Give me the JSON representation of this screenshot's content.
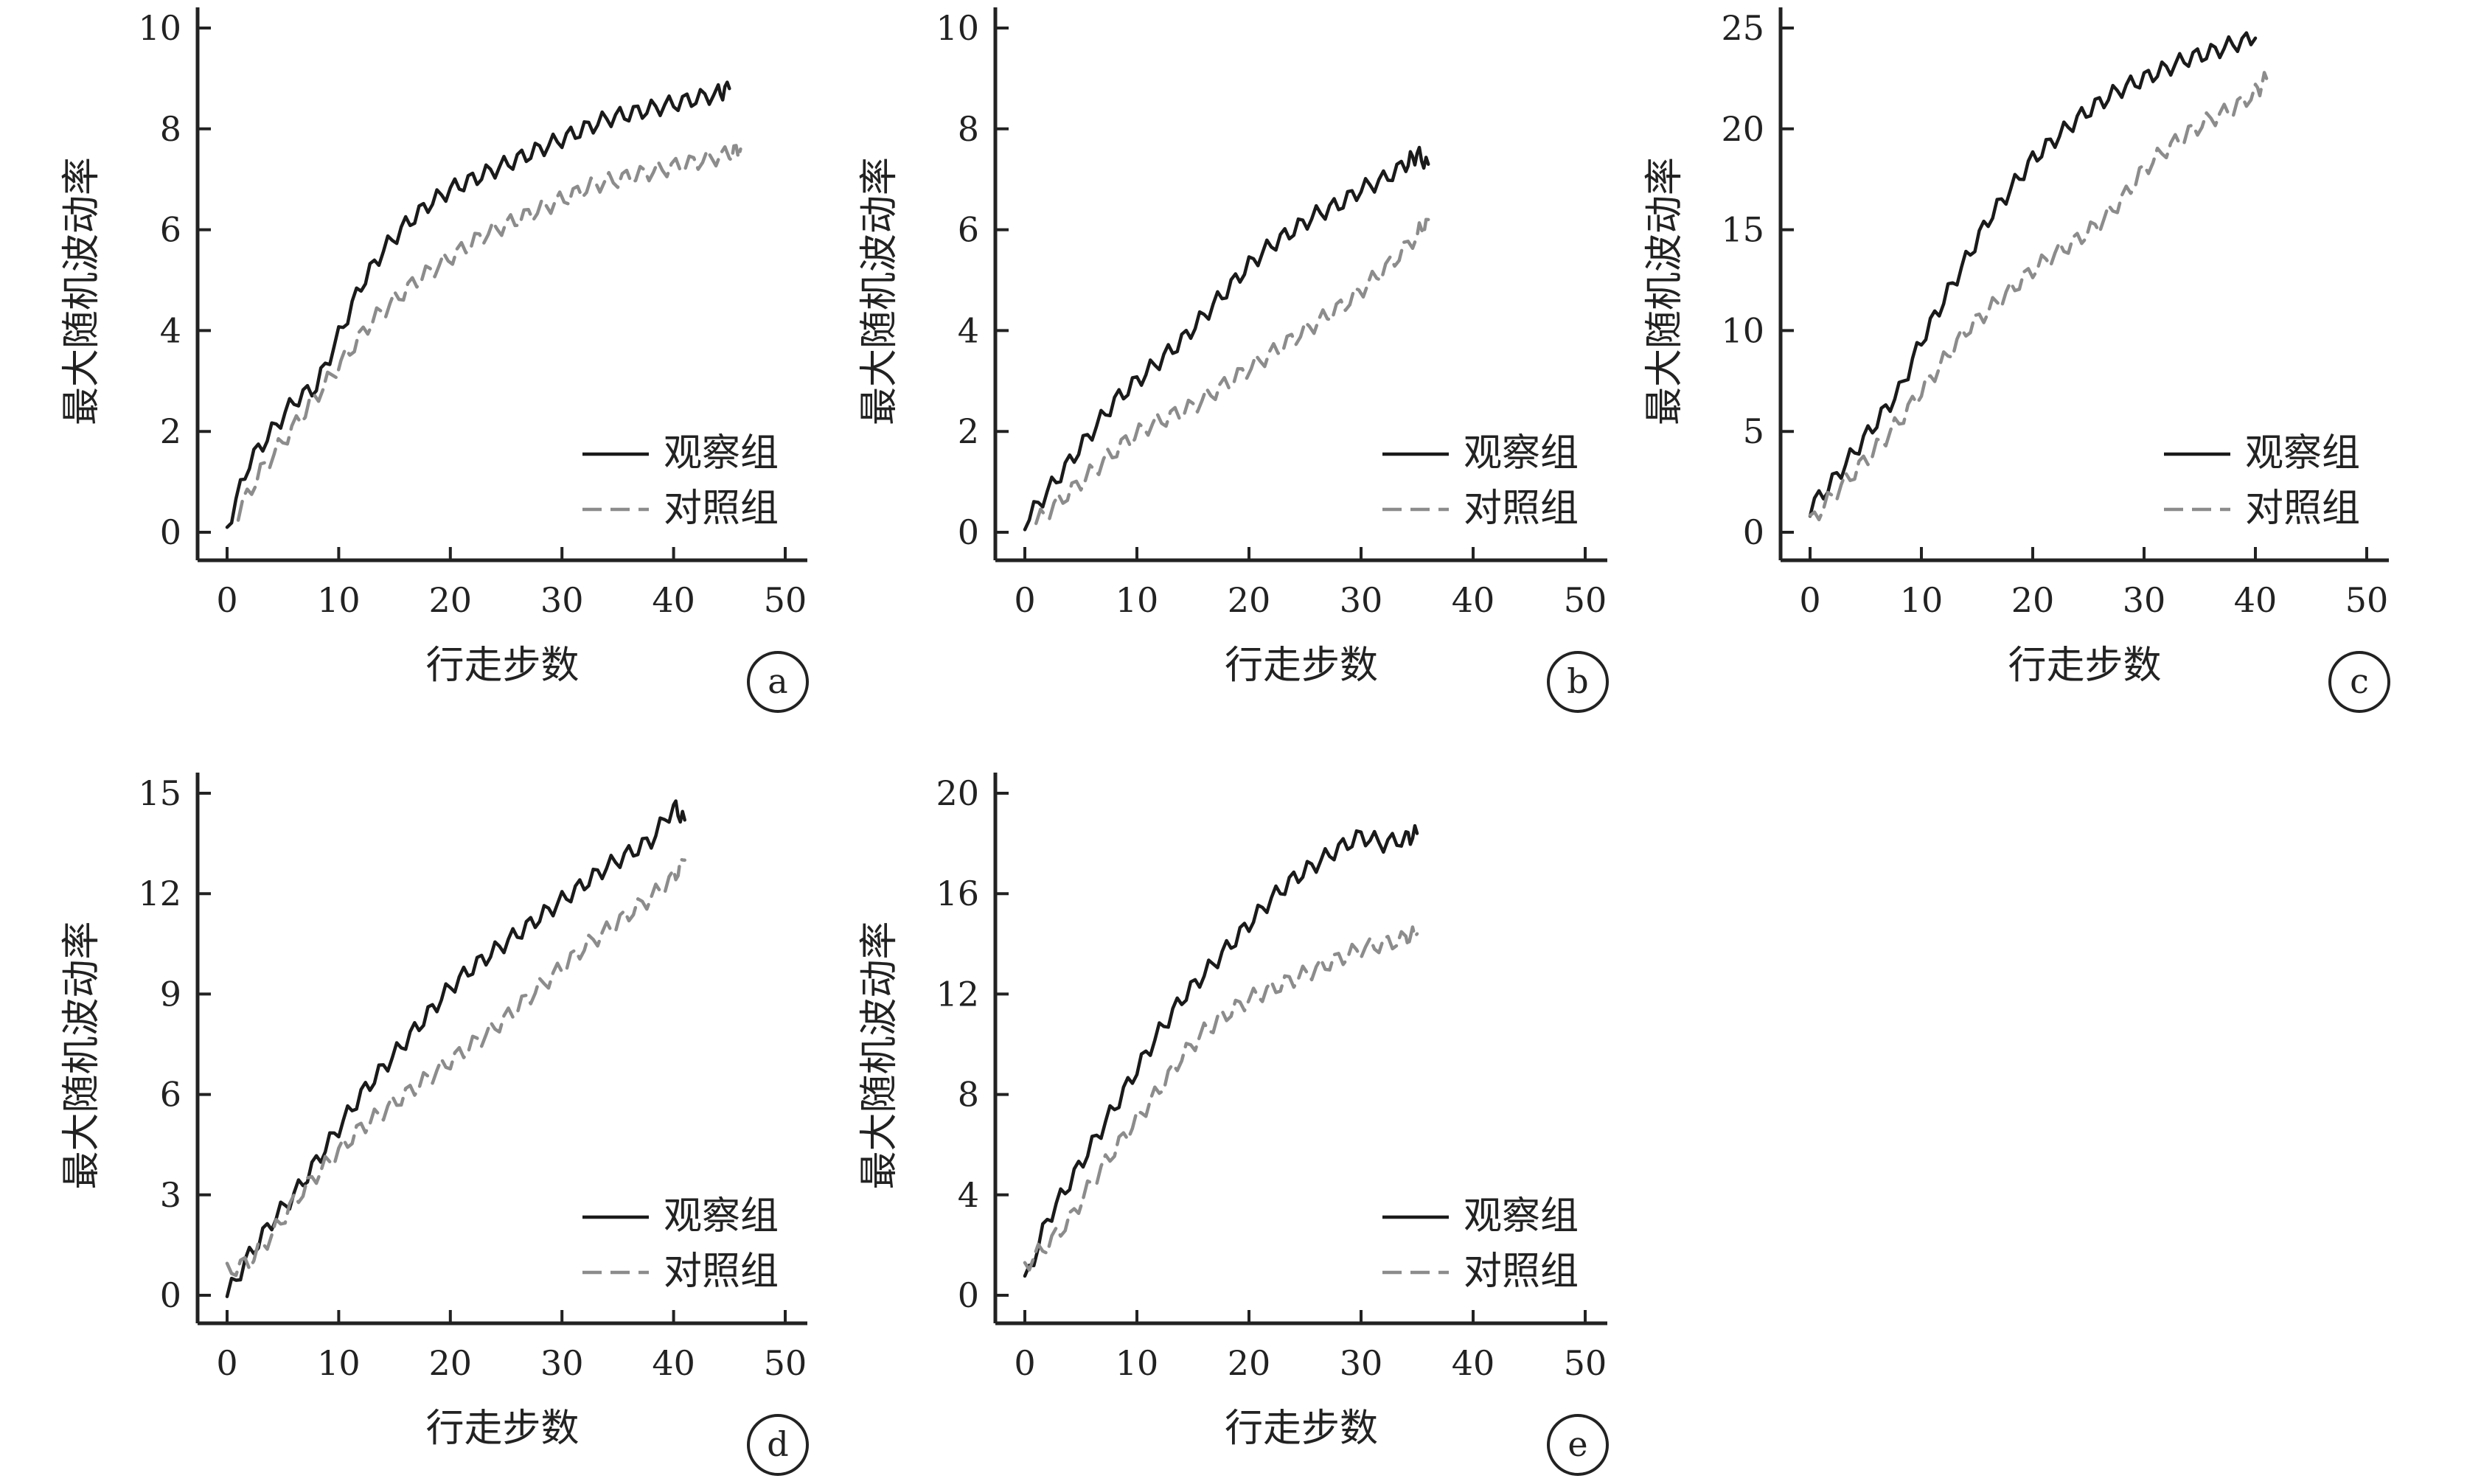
{
  "colors": {
    "observation": "#1a1a1a",
    "control": "#8c8c8c",
    "axis": "#222222",
    "background": "#ffffff"
  },
  "chart_data": [
    {
      "type": "line",
      "panel": "a",
      "xlabel": "行走步数",
      "ylabel": "最大随机波动率",
      "xlim": [
        0,
        50
      ],
      "xticks": [
        0,
        10,
        20,
        30,
        40,
        50
      ],
      "ylim": [
        0,
        10
      ],
      "yticks": [
        0,
        2,
        4,
        6,
        8,
        10
      ],
      "legend": "bottom-right",
      "grid": false,
      "series": [
        {
          "name": "观察组",
          "style": "solid",
          "x": [
            0,
            2,
            4,
            6,
            8,
            10,
            12,
            14,
            16,
            18,
            20,
            22,
            24,
            26,
            28,
            30,
            32,
            34,
            36,
            38,
            40,
            42,
            44,
            45
          ],
          "y": [
            0.1,
            1.4,
            2.0,
            2.6,
            2.9,
            3.9,
            4.9,
            5.6,
            6.1,
            6.5,
            6.8,
            7.0,
            7.2,
            7.4,
            7.6,
            7.8,
            8.0,
            8.2,
            8.3,
            8.4,
            8.5,
            8.6,
            8.7,
            8.8
          ]
        },
        {
          "name": "对照组",
          "style": "dashed",
          "x": [
            1,
            3,
            5,
            7,
            9,
            11,
            13,
            15,
            17,
            19,
            21,
            23,
            25,
            27,
            29,
            31,
            33,
            35,
            37,
            39,
            41,
            43,
            45,
            46
          ],
          "y": [
            0.4,
            1.2,
            1.8,
            2.4,
            3.0,
            3.6,
            4.2,
            4.6,
            5.0,
            5.3,
            5.6,
            5.9,
            6.1,
            6.3,
            6.5,
            6.7,
            6.9,
            7.0,
            7.1,
            7.2,
            7.3,
            7.4,
            7.5,
            7.6
          ]
        }
      ]
    },
    {
      "type": "line",
      "panel": "b",
      "xlabel": "行走步数",
      "ylabel": "最大随机波动率",
      "xlim": [
        0,
        50
      ],
      "xticks": [
        0,
        10,
        20,
        30,
        40,
        50
      ],
      "ylim": [
        0,
        10
      ],
      "yticks": [
        0,
        2,
        4,
        6,
        8,
        10
      ],
      "legend": "bottom-right",
      "grid": false,
      "series": [
        {
          "name": "观察组",
          "style": "solid",
          "x": [
            0,
            2,
            4,
            6,
            8,
            10,
            12,
            14,
            16,
            18,
            20,
            22,
            24,
            26,
            28,
            30,
            32,
            34,
            35,
            36
          ],
          "y": [
            0.2,
            0.8,
            1.4,
            2.0,
            2.6,
            3.0,
            3.4,
            3.8,
            4.3,
            4.8,
            5.3,
            5.7,
            6.0,
            6.3,
            6.5,
            6.8,
            7.0,
            7.3,
            7.5,
            7.3
          ]
        },
        {
          "name": "对照组",
          "style": "dashed",
          "x": [
            1,
            3,
            5,
            7,
            9,
            11,
            13,
            15,
            17,
            19,
            21,
            23,
            25,
            27,
            29,
            31,
            33,
            35,
            36
          ],
          "y": [
            0.2,
            0.6,
            1.0,
            1.4,
            1.8,
            2.1,
            2.3,
            2.5,
            2.8,
            3.1,
            3.4,
            3.7,
            4.0,
            4.3,
            4.6,
            5.0,
            5.4,
            5.9,
            6.2
          ]
        }
      ]
    },
    {
      "type": "line",
      "panel": "c",
      "xlabel": "行走步数",
      "ylabel": "最大随机波动率",
      "xlim": [
        0,
        50
      ],
      "xticks": [
        0,
        10,
        20,
        30,
        40,
        50
      ],
      "ylim": [
        0,
        25
      ],
      "yticks": [
        0,
        5,
        10,
        15,
        20,
        25
      ],
      "legend": "bottom-right",
      "grid": false,
      "series": [
        {
          "name": "观察组",
          "style": "solid",
          "x": [
            0,
            2,
            4,
            6,
            8,
            10,
            12,
            14,
            16,
            18,
            20,
            22,
            24,
            26,
            28,
            30,
            32,
            34,
            36,
            38,
            40
          ],
          "y": [
            1.2,
            2.5,
            4.0,
            5.5,
            7.0,
            9.5,
            11.5,
            13.5,
            15.5,
            17.0,
            18.5,
            19.5,
            20.5,
            21.3,
            22.0,
            22.5,
            23.0,
            23.5,
            23.8,
            24.2,
            24.5
          ]
        },
        {
          "name": "对照组",
          "style": "dashed",
          "x": [
            0,
            2,
            4,
            6,
            8,
            10,
            12,
            14,
            16,
            18,
            20,
            22,
            24,
            26,
            28,
            30,
            32,
            34,
            36,
            38,
            40,
            41
          ],
          "y": [
            0.5,
            1.8,
            3.0,
            4.2,
            5.5,
            7.0,
            8.5,
            10.0,
            11.0,
            12.0,
            13.0,
            13.8,
            14.5,
            15.3,
            16.5,
            18.0,
            19.0,
            19.8,
            20.5,
            21.0,
            21.8,
            22.5
          ]
        }
      ]
    },
    {
      "type": "line",
      "panel": "d",
      "xlabel": "行走步数",
      "ylabel": "最大随机波动率",
      "xlim": [
        0,
        50
      ],
      "xticks": [
        0,
        10,
        20,
        30,
        40,
        50
      ],
      "ylim": [
        0,
        15
      ],
      "yticks": [
        0,
        3,
        6,
        9,
        12,
        15
      ],
      "legend": "bottom-right",
      "grid": false,
      "series": [
        {
          "name": "观察组",
          "style": "solid",
          "x": [
            0,
            2,
            4,
            6,
            8,
            10,
            12,
            14,
            16,
            18,
            20,
            22,
            24,
            26,
            28,
            30,
            32,
            34,
            36,
            38,
            40,
            41
          ],
          "y": [
            0.0,
            1.2,
            2.2,
            3.0,
            4.0,
            5.0,
            6.0,
            6.8,
            7.6,
            8.4,
            9.2,
            9.8,
            10.3,
            10.8,
            11.3,
            11.8,
            12.3,
            12.8,
            13.2,
            13.6,
            14.6,
            14.2
          ]
        },
        {
          "name": "对照组",
          "style": "dashed",
          "x": [
            0,
            2,
            4,
            6,
            8,
            10,
            12,
            14,
            16,
            18,
            20,
            22,
            24,
            26,
            28,
            30,
            32,
            34,
            36,
            38,
            40,
            41
          ],
          "y": [
            0.7,
            1.0,
            1.8,
            2.8,
            3.6,
            4.3,
            5.0,
            5.5,
            6.0,
            6.5,
            7.0,
            7.5,
            8.0,
            8.6,
            9.2,
            9.8,
            10.4,
            10.9,
            11.4,
            11.9,
            12.5,
            13.0
          ]
        }
      ]
    },
    {
      "type": "line",
      "panel": "e",
      "xlabel": "行走步数",
      "ylabel": "最大随机波动率",
      "xlim": [
        0,
        50
      ],
      "xticks": [
        0,
        10,
        20,
        30,
        40,
        50
      ],
      "ylim": [
        0,
        20
      ],
      "yticks": [
        0,
        4,
        8,
        12,
        16,
        20
      ],
      "legend": "bottom-right",
      "grid": false,
      "series": [
        {
          "name": "观察组",
          "style": "solid",
          "x": [
            0,
            2,
            4,
            6,
            8,
            10,
            12,
            14,
            16,
            18,
            20,
            22,
            24,
            26,
            28,
            30,
            32,
            34,
            35
          ],
          "y": [
            0.5,
            3.0,
            4.5,
            6.0,
            7.5,
            9.0,
            10.5,
            11.8,
            12.8,
            13.8,
            14.8,
            15.8,
            16.6,
            17.2,
            17.8,
            18.3,
            18.0,
            18.2,
            18.4
          ]
        },
        {
          "name": "对照组",
          "style": "dashed",
          "x": [
            0,
            2,
            4,
            6,
            8,
            10,
            12,
            14,
            16,
            18,
            20,
            22,
            24,
            26,
            28,
            30,
            32,
            34,
            35
          ],
          "y": [
            1.2,
            2.0,
            3.0,
            4.5,
            5.8,
            7.0,
            8.2,
            9.5,
            10.5,
            11.2,
            11.8,
            12.2,
            12.6,
            13.0,
            13.4,
            13.8,
            14.0,
            14.2,
            14.4
          ]
        }
      ]
    }
  ]
}
